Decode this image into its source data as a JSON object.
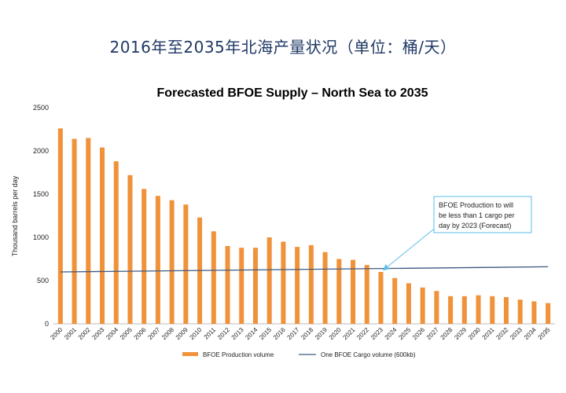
{
  "page": {
    "title": "2016年至2035年北海产量状况（单位：桶/天）"
  },
  "chart_data": {
    "type": "bar",
    "title": "Forecasted BFOE Supply – North Sea to 2035",
    "xlabel": "",
    "ylabel": "Thousand barrels per day",
    "ylim": [
      0,
      2500
    ],
    "yticks": [
      0,
      500,
      1000,
      1500,
      2000,
      2500
    ],
    "categories": [
      "2000",
      "2001",
      "2002",
      "2003",
      "2004",
      "2005",
      "2006",
      "2007",
      "2008",
      "2009",
      "2010",
      "2011",
      "2012",
      "2013",
      "2014",
      "2015",
      "2016",
      "2017",
      "2018",
      "2019",
      "2020",
      "2021",
      "2022",
      "2023",
      "2024",
      "2025",
      "2026",
      "2027",
      "2028",
      "2029",
      "2030",
      "2031",
      "2032",
      "2033",
      "2034",
      "2035"
    ],
    "series": [
      {
        "name": "BFOE Production volume",
        "type": "bar",
        "color": "#f0923a",
        "values": [
          2260,
          2140,
          2150,
          2040,
          1880,
          1720,
          1560,
          1480,
          1430,
          1380,
          1230,
          1070,
          900,
          880,
          880,
          1000,
          950,
          890,
          910,
          830,
          750,
          740,
          680,
          600,
          530,
          470,
          420,
          380,
          320,
          320,
          330,
          320,
          310,
          280,
          260,
          240
        ]
      },
      {
        "name": "One BFOE Cargo volume (600kb)",
        "type": "line",
        "color": "#3d5a80",
        "values_start": 600,
        "values_end": 660
      }
    ],
    "annotation": {
      "text": [
        "BFOE Production to will",
        "be less than 1 cargo per",
        "day by 2023 (Forecast)"
      ],
      "target_category": "2023",
      "target_value": 600,
      "border_color": "#5bbde8"
    },
    "legend_position": "bottom"
  }
}
